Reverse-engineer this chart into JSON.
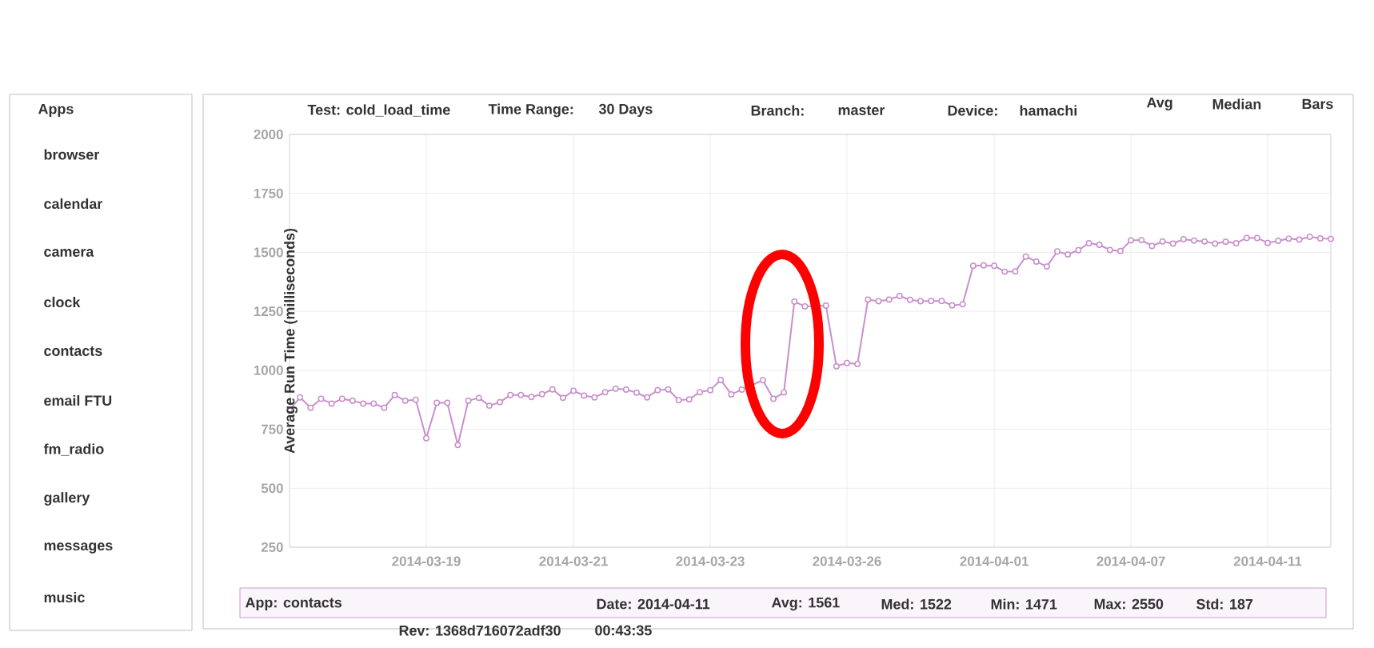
{
  "chart_data": {
    "type": "line",
    "ylabel": "Average Run Time (milliseconds)",
    "categories": [
      null,
      null,
      null,
      null,
      null,
      null,
      null,
      null,
      null,
      null,
      null,
      null,
      null,
      "2014-03-19",
      null,
      null,
      null,
      null,
      null,
      null,
      null,
      null,
      null,
      null,
      null,
      null,
      null,
      "2014-03-21",
      null,
      null,
      null,
      null,
      null,
      null,
      null,
      null,
      null,
      null,
      null,
      null,
      "2014-03-23",
      null,
      null,
      null,
      null,
      null,
      null,
      null,
      null,
      null,
      null,
      null,
      null,
      "2014-03-26",
      null,
      null,
      null,
      null,
      null,
      null,
      null,
      null,
      null,
      null,
      null,
      null,
      null,
      "2014-04-01",
      null,
      null,
      null,
      null,
      null,
      null,
      null,
      null,
      null,
      null,
      null,
      null,
      "2014-04-07",
      null,
      null,
      null,
      null,
      null,
      null,
      null,
      null,
      null,
      null,
      null,
      null,
      "2014-04-11",
      null,
      null,
      null,
      null,
      null,
      null
    ],
    "values": [
      832,
      885,
      841,
      879,
      859,
      879,
      871,
      859,
      859,
      841,
      895,
      871,
      875,
      712,
      862,
      862,
      683,
      871,
      883,
      850,
      865,
      895,
      895,
      887,
      899,
      919,
      883,
      913,
      893,
      885,
      907,
      922,
      918,
      905,
      885,
      916,
      919,
      873,
      877,
      907,
      916,
      959,
      898,
      918,
      null,
      958,
      879,
      906,
      1291,
      1271,
      null,
      1274,
      1017,
      1031,
      1027,
      1300,
      1293,
      1300,
      1315,
      1299,
      1293,
      1294,
      1294,
      1275,
      1280,
      1443,
      1445,
      1443,
      1418,
      1419,
      1482,
      1461,
      1440,
      1504,
      1491,
      1509,
      1539,
      1532,
      1510,
      1506,
      1551,
      1552,
      1527,
      1546,
      1537,
      1556,
      1550,
      1546,
      1537,
      1545,
      1539,
      1561,
      1561,
      1540,
      1549,
      1558,
      1554,
      1566,
      1559,
      1557
    ],
    "color": "#c88fcc",
    "ylim": [
      250,
      2000
    ],
    "yticks": [
      250,
      500,
      750,
      1000,
      1250,
      1500,
      1750,
      2000
    ],
    "grid": true,
    "marker": "circle",
    "annotations": [
      "Apps",
      "browser",
      "calendar",
      "camera",
      "clock",
      "contacts",
      "email FTU",
      "fm_radio",
      "gallery",
      "messages",
      "music",
      "Test: cold_load_time",
      "Time Range:",
      "30 Days",
      "Branch:",
      "master",
      "Device:",
      "hamachi",
      "Avg",
      "Median",
      "Bars",
      "App: contacts",
      "Rev: 1368d716072adf30",
      "Date: 2014-04-11",
      "00:43:35",
      "Avg: 1561",
      "Med: 1522",
      "Min: 1471",
      "Max: 2550",
      "Std: 187"
    ]
  }
}
